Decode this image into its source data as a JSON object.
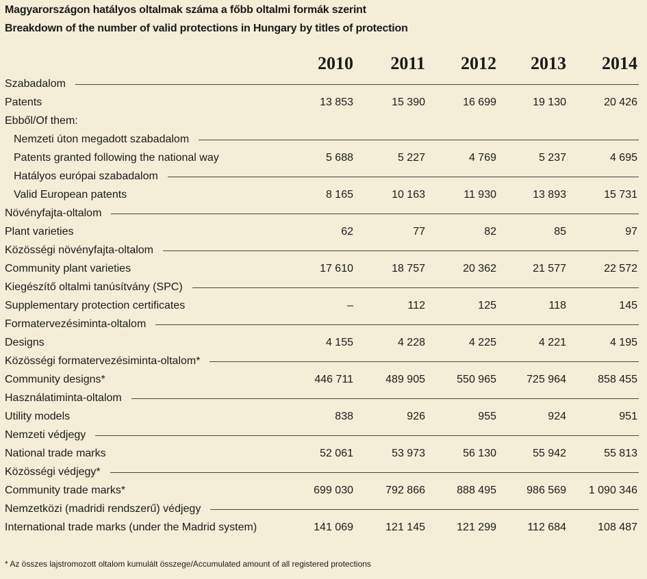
{
  "title_hu": "Magyarországon hatályos oltalmak száma a főbb oltalmi formák szerint",
  "title_en": "Breakdown of the number of valid protections in Hungary by titles of protection",
  "years": [
    "2010",
    "2011",
    "2012",
    "2013",
    "2014"
  ],
  "groups": [
    {
      "hu": "Szabadalom",
      "en": "Patents",
      "values": [
        "13 853",
        "15 390",
        "16 699",
        "19 130",
        "20 426"
      ]
    },
    {
      "note": "Ebből/Of them:"
    },
    {
      "hu": "Nemzeti úton megadott szabadalom",
      "en": "Patents granted following the national way",
      "values": [
        "5 688",
        "5 227",
        "4 769",
        "5 237",
        "4 695"
      ],
      "indent": true
    },
    {
      "hu": "Hatályos európai szabadalom",
      "en": "Valid European patents",
      "values": [
        "8 165",
        "10 163",
        "11 930",
        "13 893",
        "15 731"
      ],
      "indent": true
    },
    {
      "hu": "Növényfajta-oltalom",
      "en": "Plant varieties",
      "values": [
        "62",
        "77",
        "82",
        "85",
        "97"
      ]
    },
    {
      "hu": "Közösségi növényfajta-oltalom",
      "en": "Community plant varieties",
      "values": [
        "17 610",
        "18 757",
        "20 362",
        "21 577",
        "22 572"
      ]
    },
    {
      "hu": "Kiegészítő oltalmi tanúsítvány (SPC)",
      "en": "Supplementary protection certificates",
      "values": [
        "–",
        "112",
        "125",
        "118",
        "145"
      ]
    },
    {
      "hu": "Formatervezésiminta-oltalom",
      "en": "Designs",
      "values": [
        "4 155",
        "4 228",
        "4 225",
        "4 221",
        "4 195"
      ]
    },
    {
      "hu": "Közösségi formatervezésiminta-oltalom*",
      "en": "Community designs*",
      "values": [
        "446 711",
        "489 905",
        "550 965",
        "725 964",
        "858 455"
      ]
    },
    {
      "hu": "Használatiminta-oltalom",
      "en": "Utility models",
      "values": [
        "838",
        "926",
        "955",
        "924",
        "951"
      ]
    },
    {
      "hu": "Nemzeti védjegy",
      "en": "National trade marks",
      "values": [
        "52 061",
        "53 973",
        "56 130",
        "55 942",
        "55 813"
      ]
    },
    {
      "hu": "Közösségi védjegy*",
      "en": "Community trade marks*",
      "values": [
        "699 030",
        "792 866",
        "888 495",
        "986 569",
        "1 090 346"
      ]
    },
    {
      "hu": "Nemzetközi (madridi rendszerű) védjegy",
      "en": "International trade marks (under the Madrid system)",
      "values": [
        "141 069",
        "121 145",
        "121 299",
        "112 684",
        "108 487"
      ]
    }
  ],
  "footnote": "* Az összes lajstromozott oltalom kumulált összege/Accumulated amount of all registered protections",
  "colors": {
    "background": "#f4eed8",
    "text": "#1a1a1a",
    "rule": "#444444"
  }
}
